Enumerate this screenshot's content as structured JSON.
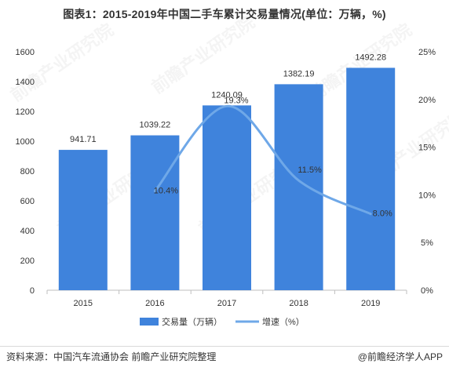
{
  "title": "图表1：2015-2019年中国二手车累计交易量情况(单位：万辆，%)",
  "footer": {
    "source": "资料来源：中国汽车流通协会 前瞻产业研究院整理",
    "brand": "@前瞻经济学人APP"
  },
  "watermark": "前瞻产业研究院",
  "colors": {
    "bar": "#3f83dc",
    "line": "#6fa8e8"
  },
  "chart_data": {
    "type": "bar",
    "title": "图表1：2015-2019年中国二手车累计交易量情况(单位：万辆，%)",
    "categories": [
      "2015",
      "2016",
      "2017",
      "2018",
      "2019"
    ],
    "series": [
      {
        "name": "交易量（万辆）",
        "type": "bar",
        "axis": "left",
        "values": [
          941.71,
          1039.22,
          1240.09,
          1382.19,
          1492.28
        ],
        "labels": [
          "941.71",
          "1039.22",
          "1240.09",
          "1382.19",
          "1492.28"
        ]
      },
      {
        "name": "增速（%）",
        "type": "line",
        "axis": "right",
        "values": [
          null,
          10.4,
          19.3,
          11.5,
          8.0
        ],
        "labels": [
          "",
          "10.4%",
          "19.3%",
          "11.5%",
          "8.0%"
        ]
      }
    ],
    "ylim": [
      0,
      1600
    ],
    "yticks": [
      "0",
      "200",
      "400",
      "600",
      "800",
      "1000",
      "1200",
      "1400",
      "1600"
    ],
    "y2lim": [
      0,
      25
    ],
    "y2ticks": [
      "0%",
      "5%",
      "10%",
      "15%",
      "20%",
      "25%"
    ],
    "legend": "bottom",
    "grid": false
  }
}
